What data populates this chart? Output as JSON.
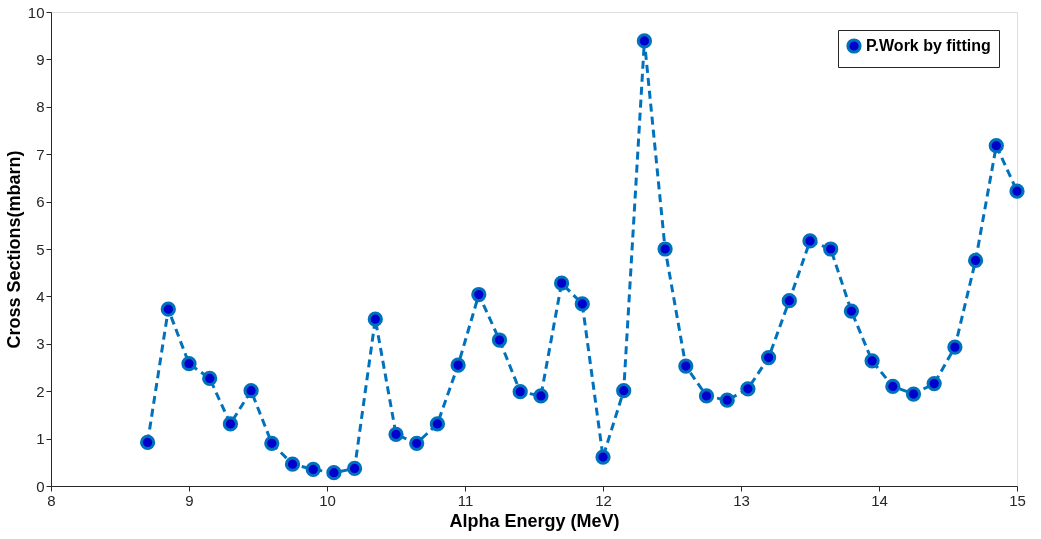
{
  "chart_data": {
    "type": "line",
    "xlabel": "Alpha Energy (MeV)",
    "ylabel": "Cross Sections(mbarn)",
    "x": [
      8.7,
      8.85,
      9.0,
      9.15,
      9.3,
      9.45,
      9.6,
      9.75,
      9.9,
      10.05,
      10.2,
      10.35,
      10.5,
      10.65,
      10.8,
      10.95,
      11.1,
      11.25,
      11.4,
      11.55,
      11.7,
      11.85,
      12.0,
      12.15,
      12.3,
      12.45,
      12.6,
      12.75,
      12.9,
      13.05,
      13.2,
      13.35,
      13.5,
      13.65,
      13.8,
      13.95,
      14.1,
      14.25,
      14.4,
      14.55,
      14.7,
      14.85,
      15.0
    ],
    "series": [
      {
        "name": "P.Work by fitting",
        "color": "#0072bd",
        "values": [
          0.92,
          3.73,
          2.58,
          2.27,
          1.31,
          2.01,
          0.9,
          0.46,
          0.35,
          0.28,
          0.37,
          3.52,
          1.09,
          0.9,
          1.31,
          2.55,
          4.04,
          3.08,
          1.99,
          1.9,
          4.28,
          3.84,
          0.61,
          2.01,
          9.39,
          5.0,
          2.53,
          1.9,
          1.81,
          2.05,
          2.71,
          3.91,
          5.17,
          5.0,
          3.69,
          2.64,
          2.1,
          1.94,
          2.16,
          2.93,
          4.76,
          7.18,
          6.22
        ]
      }
    ],
    "xlim": [
      8,
      15
    ],
    "xticks": [
      8,
      9,
      10,
      11,
      12,
      13,
      14,
      15
    ],
    "ylim": [
      0,
      10
    ],
    "yticks": [
      0,
      1,
      2,
      3,
      4,
      5,
      6,
      7,
      8,
      9,
      10
    ],
    "grid": false,
    "legend": "top right",
    "marker": "circle",
    "line_style": "dashed"
  }
}
